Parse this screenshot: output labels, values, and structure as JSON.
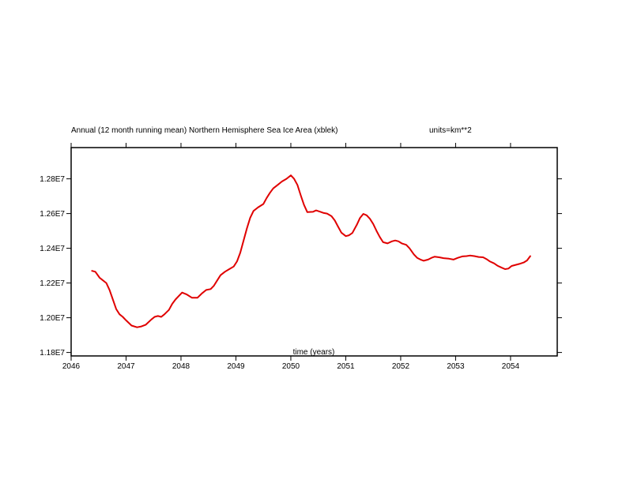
{
  "chart_data": {
    "type": "line",
    "title": "Annual (12 month running mean) Northern Hemisphere Sea Ice Area (xblek)",
    "units_label": "units=km**2",
    "xlabel": "time (years)",
    "ylabel": "",
    "xlim": [
      2046,
      2054.85
    ],
    "ylim": [
      11780000,
      12980000
    ],
    "x_ticks": [
      2046,
      2047,
      2048,
      2049,
      2050,
      2051,
      2052,
      2053,
      2054
    ],
    "x_tick_labels": [
      "2046",
      "2047",
      "2048",
      "2049",
      "2050",
      "2051",
      "2052",
      "2053",
      "2054"
    ],
    "y_ticks": [
      11800000,
      12000000,
      12200000,
      12400000,
      12600000,
      12800000
    ],
    "y_tick_labels": [
      "1.18E7",
      "1.20E7",
      "1.22E7",
      "1.24E7",
      "1.26E7",
      "1.28E7"
    ],
    "grid": false,
    "series": [
      {
        "color": "#e00000",
        "x": [
          2046.38,
          2046.44,
          2046.52,
          2046.64,
          2046.7,
          2046.76,
          2046.82,
          2046.88,
          2046.94,
          2047.0,
          2047.1,
          2047.2,
          2047.28,
          2047.36,
          2047.46,
          2047.52,
          2047.58,
          2047.64,
          2047.7,
          2047.78,
          2047.84,
          2047.9,
          2047.96,
          2048.02,
          2048.1,
          2048.2,
          2048.3,
          2048.38,
          2048.46,
          2048.54,
          2048.6,
          2048.66,
          2048.72,
          2048.8,
          2048.88,
          2048.96,
          2049.02,
          2049.08,
          2049.14,
          2049.2,
          2049.26,
          2049.32,
          2049.4,
          2049.5,
          2049.56,
          2049.62,
          2049.68,
          2049.76,
          2049.84,
          2049.92,
          2050.0,
          2050.06,
          2050.12,
          2050.18,
          2050.24,
          2050.3,
          2050.4,
          2050.46,
          2050.54,
          2050.6,
          2050.66,
          2050.74,
          2050.8,
          2050.86,
          2050.92,
          2051.0,
          2051.06,
          2051.12,
          2051.2,
          2051.26,
          2051.32,
          2051.38,
          2051.44,
          2051.5,
          2051.56,
          2051.62,
          2051.68,
          2051.76,
          2051.84,
          2051.9,
          2051.96,
          2052.02,
          2052.1,
          2052.16,
          2052.24,
          2052.3,
          2052.36,
          2052.42,
          2052.5,
          2052.56,
          2052.62,
          2052.7,
          2052.78,
          2052.88,
          2052.96,
          2053.04,
          2053.12,
          2053.2,
          2053.26,
          2053.34,
          2053.42,
          2053.5,
          2053.56,
          2053.62,
          2053.7,
          2053.76,
          2053.84,
          2053.9,
          2053.96,
          2054.02,
          2054.1,
          2054.16,
          2054.24,
          2054.3,
          2054.36
        ],
        "values": [
          12270000,
          12265000,
          12230000,
          12200000,
          12160000,
          12105000,
          12050000,
          12020000,
          12005000,
          11985000,
          11955000,
          11945000,
          11950000,
          11960000,
          11990000,
          12005000,
          12010000,
          12005000,
          12020000,
          12045000,
          12080000,
          12105000,
          12125000,
          12145000,
          12135000,
          12115000,
          12115000,
          12140000,
          12160000,
          12165000,
          12185000,
          12215000,
          12245000,
          12265000,
          12280000,
          12295000,
          12325000,
          12375000,
          12445000,
          12515000,
          12575000,
          12615000,
          12635000,
          12655000,
          12690000,
          12720000,
          12745000,
          12765000,
          12785000,
          12800000,
          12820000,
          12800000,
          12765000,
          12705000,
          12650000,
          12608000,
          12610000,
          12618000,
          12610000,
          12603000,
          12600000,
          12585000,
          12560000,
          12525000,
          12490000,
          12470000,
          12475000,
          12488000,
          12535000,
          12575000,
          12598000,
          12590000,
          12570000,
          12540000,
          12500000,
          12465000,
          12435000,
          12428000,
          12440000,
          12445000,
          12440000,
          12428000,
          12420000,
          12400000,
          12365000,
          12345000,
          12335000,
          12328000,
          12335000,
          12345000,
          12352000,
          12348000,
          12343000,
          12340000,
          12335000,
          12345000,
          12353000,
          12355000,
          12358000,
          12355000,
          12350000,
          12348000,
          12338000,
          12325000,
          12313000,
          12300000,
          12288000,
          12280000,
          12283000,
          12298000,
          12305000,
          12310000,
          12318000,
          12330000,
          12355000
        ]
      }
    ]
  }
}
